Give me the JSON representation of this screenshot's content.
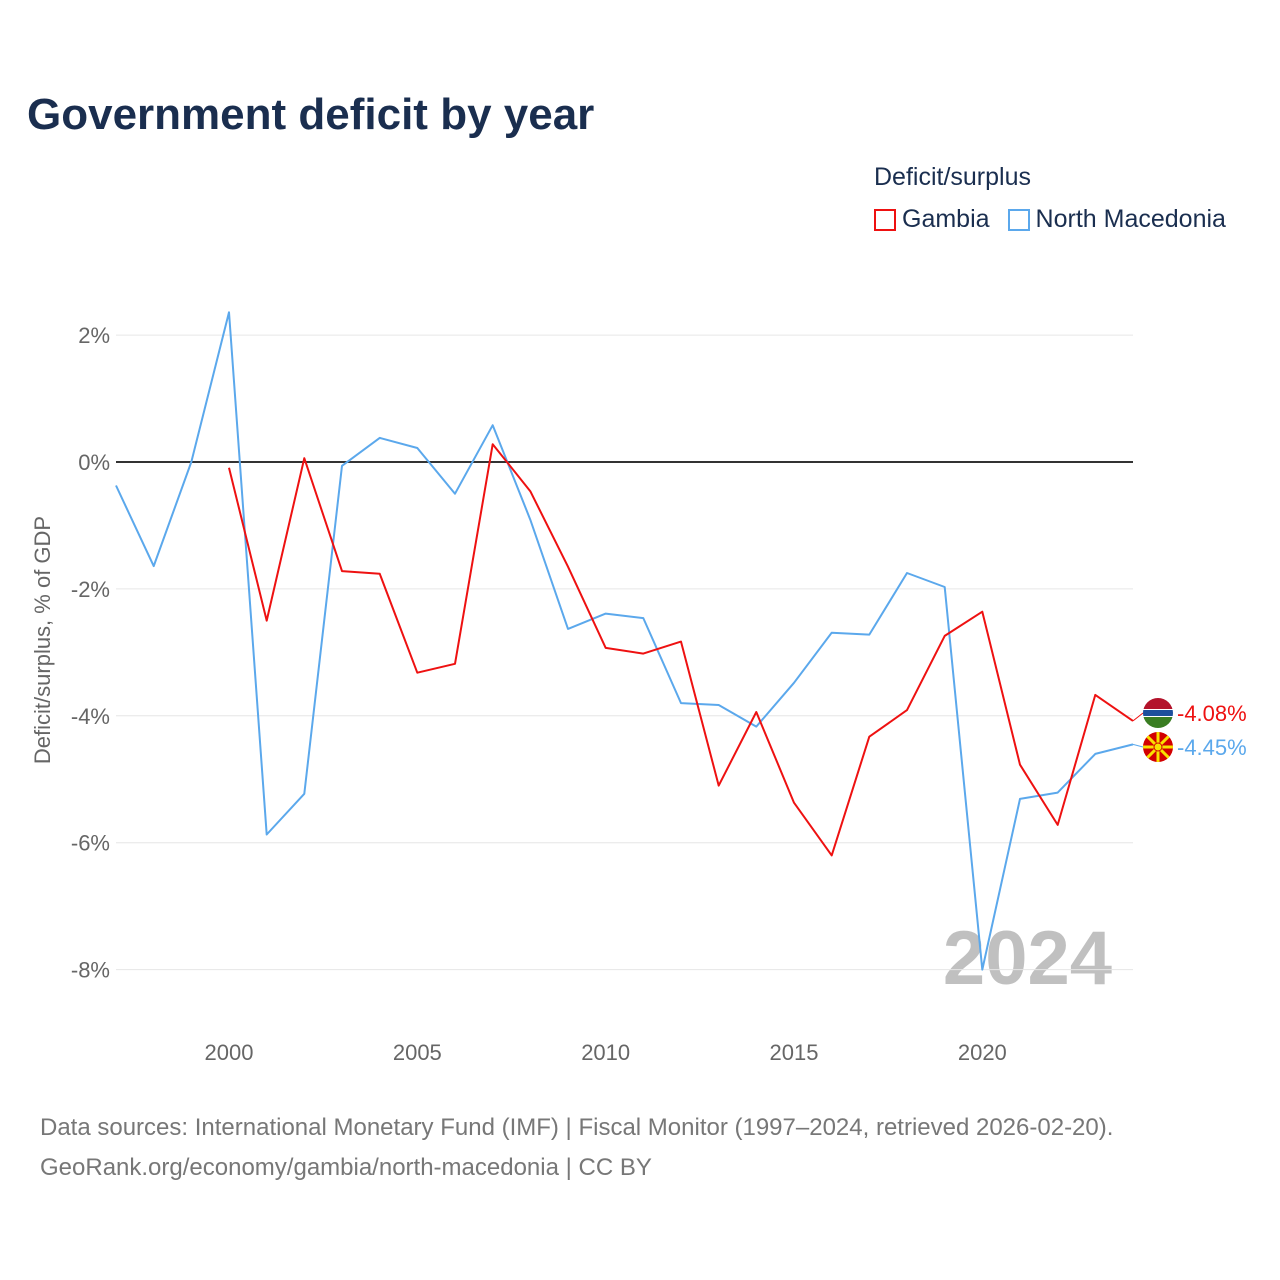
{
  "chart_data": {
    "type": "line",
    "title": "Government deficit by year",
    "ylabel": "Deficit/surplus, % of GDP",
    "xlabel": "",
    "legend_title": "Deficit/surplus",
    "legend_position": "top-right",
    "xlim": [
      1997,
      2024
    ],
    "ylim": [
      -9,
      3
    ],
    "y_ticks": [
      2,
      0,
      -2,
      -4,
      -6,
      -8
    ],
    "y_tick_labels": [
      "2%",
      "0%",
      "-2%",
      "-4%",
      "-6%",
      "-8%"
    ],
    "x_ticks": [
      2000,
      2005,
      2010,
      2015,
      2020
    ],
    "x_tick_labels": [
      "2000",
      "2005",
      "2010",
      "2015",
      "2020"
    ],
    "grid": true,
    "watermark_year": "2024",
    "series": [
      {
        "name": "Gambia",
        "color": "#ee1111",
        "end_label": "-4.08%",
        "flag": "gambia-flag",
        "x": [
          2000,
          2001,
          2002,
          2003,
          2004,
          2005,
          2006,
          2007,
          2008,
          2009,
          2010,
          2011,
          2012,
          2013,
          2014,
          2015,
          2016,
          2017,
          2018,
          2019,
          2020,
          2021,
          2022,
          2023,
          2024
        ],
        "values": [
          -0.09,
          -2.5,
          0.06,
          -1.72,
          -1.76,
          -3.32,
          -3.18,
          0.28,
          -0.46,
          -1.65,
          -2.93,
          -3.02,
          -2.83,
          -5.1,
          -3.94,
          -5.37,
          -6.2,
          -4.33,
          -3.91,
          -2.74,
          -2.36,
          -4.77,
          -5.72,
          -3.67,
          -4.08
        ]
      },
      {
        "name": "North Macedonia",
        "color": "#5ba8ec",
        "end_label": "-4.45%",
        "flag": "north-macedonia-flag",
        "x": [
          1997,
          1998,
          1999,
          2000,
          2001,
          2002,
          2003,
          2004,
          2005,
          2006,
          2007,
          2008,
          2009,
          2010,
          2011,
          2012,
          2013,
          2014,
          2015,
          2016,
          2017,
          2018,
          2019,
          2020,
          2021,
          2022,
          2023,
          2024
        ],
        "values": [
          -0.37,
          -1.64,
          0.0,
          2.36,
          -5.87,
          -5.23,
          -0.06,
          0.38,
          0.22,
          -0.5,
          0.58,
          -0.91,
          -2.63,
          -2.39,
          -2.46,
          -3.8,
          -3.83,
          -4.17,
          -3.48,
          -2.69,
          -2.72,
          -1.75,
          -1.97,
          -8.0,
          -5.31,
          -5.21,
          -4.6,
          -4.45
        ]
      }
    ]
  },
  "footer": {
    "line1": "Data sources: International Monetary Fund (IMF) | Fiscal Monitor (1997–2024, retrieved 2026-02-20).",
    "line2": "GeoRank.org/economy/gambia/north-macedonia | CC BY"
  }
}
